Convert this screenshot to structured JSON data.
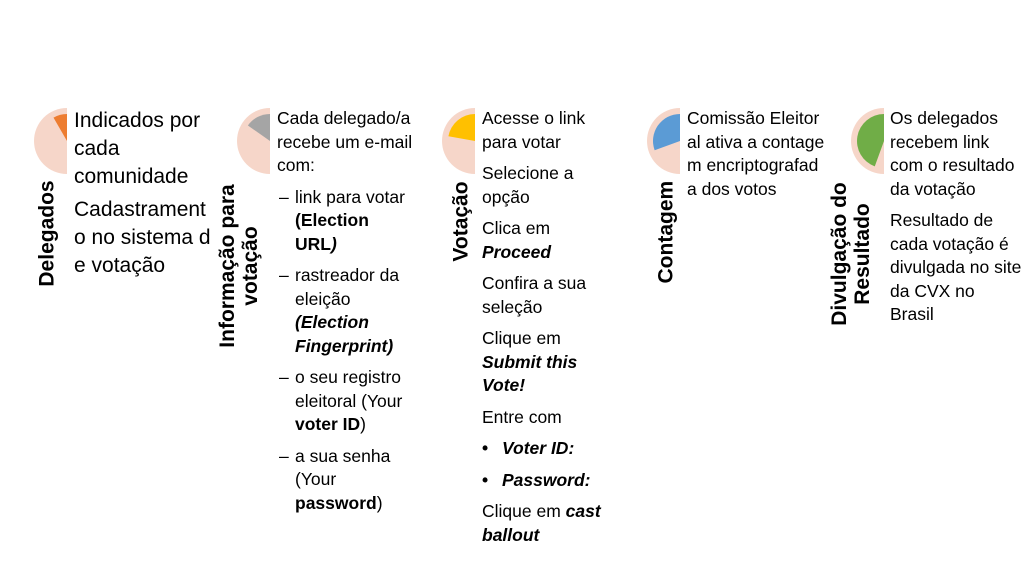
{
  "colors": {
    "pie_bg": "#f6d6c9",
    "wedge_delegados": "#ed7d31",
    "wedge_informacao": "#a5a5a5",
    "wedge_votacao": "#ffc000",
    "wedge_contagem": "#5b9bd5",
    "wedge_divulgacao": "#70ad47"
  },
  "stages": [
    {
      "label": "Delegados",
      "items": [
        "Indicados por cada comunidade",
        "Cadastramento no sistema de votação"
      ]
    },
    {
      "label_line1": "Informação para",
      "label_line2": "votação",
      "intro": "Cada delegado/a recebe um e-mail com:",
      "sub1_a": "link para votar ",
      "sub1_b": "(Election URL",
      "sub1_c": ")",
      "sub2_a": "rastreador da eleição ",
      "sub2_b": "(Election Fingerprint)",
      "sub3_a": "o seu registro eleitoral (Your ",
      "sub3_b": "voter ID",
      "sub3_c": ")",
      "sub4_a": "a sua senha (Your ",
      "sub4_b": "password",
      "sub4_c": ")"
    },
    {
      "label": "Votação",
      "p1": "Acesse o link para votar",
      "p2": "Selecione a opção",
      "p3_a": "Clica em ",
      "p3_b": "Proceed",
      "p4": "Confira a sua seleção",
      "p5_a": "Clique em ",
      "p5_b": "Submit this Vote!",
      "p6": "Entre com",
      "b1": "Voter ID:",
      "b2": "Password:",
      "p7_a": "Clique em ",
      "p7_b": "cast ballout"
    },
    {
      "label": "Contagem",
      "p1": "Comissão Eleitoral ativa a contagem encriptografada dos votos"
    },
    {
      "label_line1": "Divulgação do",
      "label_line2": "Resultado",
      "p1": "Os delegados recebem link com o resultado da votação",
      "p2": "Resultado de cada votação é divulgada no site da CVX no Brasil"
    }
  ],
  "symbols": {
    "dash": "–",
    "bullet": "•"
  }
}
